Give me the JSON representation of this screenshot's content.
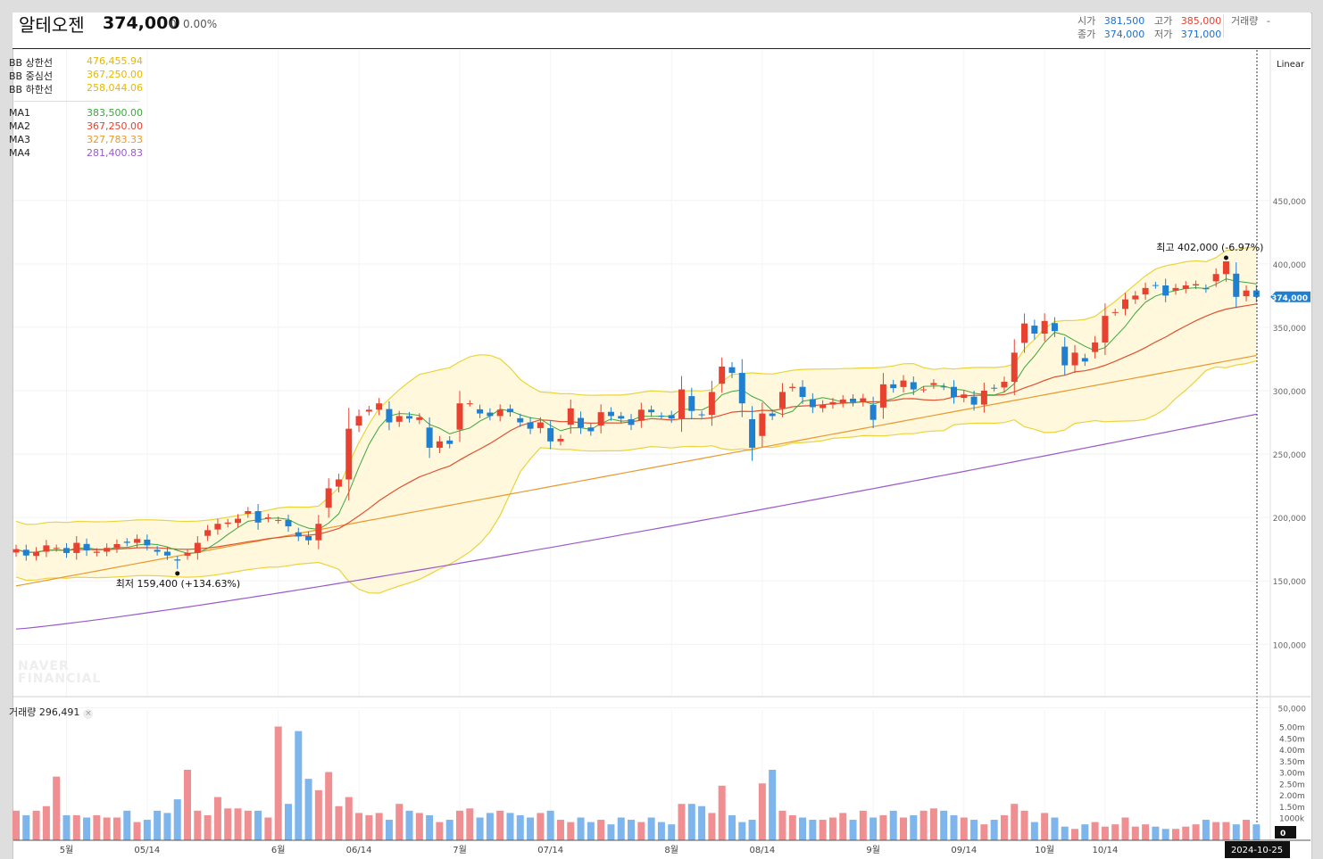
{
  "header": {
    "name": "알테오젠",
    "price": "374,000",
    "change": "0",
    "change_pct": "0.00%",
    "ohlc": {
      "open_label": "시가",
      "open": "381,500",
      "high_label": "고가",
      "high": "385,000",
      "volume_label": "거래량",
      "volume": "-",
      "close_label": "종가",
      "close": "374,000",
      "low_label": "저가",
      "low": "371,000"
    }
  },
  "legend": {
    "bb": [
      {
        "name": "BB 상한선",
        "value": "476,455.94",
        "color": "#e6b800"
      },
      {
        "name": "BB 중심선",
        "value": "367,250.00",
        "color": "#e6b800"
      },
      {
        "name": "BB 하한선",
        "value": "258,044.06",
        "color": "#e6b800"
      }
    ],
    "ma": [
      {
        "name": "MA1",
        "value": "383,500.00",
        "color": "#3fa63f"
      },
      {
        "name": "MA2",
        "value": "367,250.00",
        "color": "#e8412f"
      },
      {
        "name": "MA3",
        "value": "327,783.33",
        "color": "#e89a2f"
      },
      {
        "name": "MA4",
        "value": "281,400.83",
        "color": "#9b59c9"
      }
    ]
  },
  "controls": {
    "scale_mode": "Linear"
  },
  "watermark": {
    "line1": "NAVER",
    "line2": "FINANCIAL"
  },
  "annotations": {
    "high": "최고 402,000 (-6.97%)",
    "low": "최저 159,400 (+134.63%)"
  },
  "price_tag": "374,000",
  "volume_panel": {
    "title": "거래량 296,491",
    "close_icon": "×",
    "last_value_tag": "0"
  },
  "date_tag": "2024-10-25",
  "colors": {
    "up": "#e8412f",
    "down": "#1f7fd1",
    "bb_fill": "#fff8dc",
    "bb_line": "#ead43a",
    "vol_up": "#f08f92",
    "vol_down": "#7db5ec"
  },
  "chart_data": {
    "type": "candlestick",
    "title": "알테오젠",
    "price_axis": {
      "ticks": [
        50000,
        100000,
        150000,
        200000,
        250000,
        300000,
        350000,
        400000,
        450000
      ],
      "tick_labels": [
        "50,000",
        "100,000",
        "150,000",
        "200,000",
        "250,000",
        "300,000",
        "350,000",
        "400,000",
        "450,000"
      ]
    },
    "volume_axis": {
      "tick_labels": [
        "1000k",
        "1.50m",
        "2.00m",
        "2.50m",
        "3.00m",
        "3.50m",
        "4.00m",
        "4.50m",
        "5.00m"
      ],
      "ticks": [
        1000000,
        1500000,
        2000000,
        2500000,
        3000000,
        3500000,
        4000000,
        4500000,
        5000000
      ]
    },
    "x_labels": [
      "5월",
      "05/14",
      "6월",
      "06/14",
      "7월",
      "07/14",
      "8월",
      "08/14",
      "9월",
      "09/14",
      "10월",
      "10/14"
    ],
    "x_label_index": [
      5,
      13,
      26,
      34,
      44,
      53,
      65,
      74,
      85,
      94,
      102,
      108
    ],
    "close": [
      175000,
      170000,
      173000,
      178000,
      176000,
      172000,
      180000,
      174000,
      173000,
      176000,
      179000,
      180000,
      183000,
      178000,
      173000,
      170000,
      166000,
      172000,
      180000,
      190000,
      195000,
      196000,
      199000,
      205000,
      196000,
      200000,
      198000,
      193000,
      185000,
      182000,
      195000,
      223000,
      230000,
      270000,
      280000,
      285000,
      290000,
      275000,
      280000,
      278000,
      279000,
      255000,
      260000,
      258000,
      290000,
      290000,
      282000,
      280000,
      285000,
      283000,
      275000,
      270000,
      275000,
      260000,
      262000,
      286000,
      271000,
      268000,
      283000,
      280000,
      278000,
      273000,
      285000,
      283000,
      280000,
      278000,
      301000,
      284000,
      281000,
      299000,
      319000,
      314000,
      290000,
      255000,
      282000,
      280000,
      299000,
      303000,
      295000,
      287000,
      289000,
      291000,
      293000,
      291000,
      294000,
      277000,
      305000,
      302000,
      308000,
      301000,
      301000,
      306000,
      303000,
      295000,
      297000,
      289000,
      300000,
      302000,
      307000,
      330000,
      353000,
      345000,
      355000,
      347000,
      320000,
      330000,
      323000,
      338000,
      359000,
      362000,
      372000,
      375000,
      381000,
      383000,
      375000,
      381000,
      383000,
      384000,
      380000,
      392000,
      402000,
      374000,
      379000,
      374000
    ],
    "volume_values": [
      1300000,
      1100000,
      1300000,
      1500000,
      2800000,
      1100000,
      1100000,
      1000000,
      1100000,
      1000000,
      1000000,
      1300000,
      800000,
      900000,
      1300000,
      1200000,
      1800000,
      3100000,
      1300000,
      1100000,
      1900000,
      1400000,
      1400000,
      1300000,
      1300000,
      1000000,
      5000000,
      1600000,
      4800000,
      2700000,
      2200000,
      3000000,
      1500000,
      1900000,
      1200000,
      1100000,
      1200000,
      900000,
      1600000,
      1300000,
      1200000,
      1100000,
      800000,
      900000,
      1300000,
      1400000,
      1000000,
      1200000,
      1300000,
      1200000,
      1100000,
      1000000,
      1200000,
      1300000,
      900000,
      800000,
      1000000,
      800000,
      900000,
      700000,
      1000000,
      900000,
      800000,
      1000000,
      800000,
      700000,
      1600000,
      1600000,
      1500000,
      1200000,
      2400000,
      1100000,
      800000,
      900000,
      2500000,
      3100000,
      1300000,
      1100000,
      1000000,
      900000,
      900000,
      1000000,
      1200000,
      900000,
      1300000,
      1000000,
      1100000,
      1300000,
      1000000,
      1100000,
      1300000,
      1400000,
      1300000,
      1100000,
      1000000,
      900000,
      700000,
      900000,
      1100000,
      1600000,
      1300000,
      800000,
      1200000,
      1000000,
      600000,
      500000,
      700000,
      800000,
      600000,
      700000,
      1000000,
      600000,
      700000,
      600000,
      500000,
      500000,
      600000,
      700000,
      900000,
      800000,
      800000,
      700000,
      900000,
      700000
    ]
  }
}
